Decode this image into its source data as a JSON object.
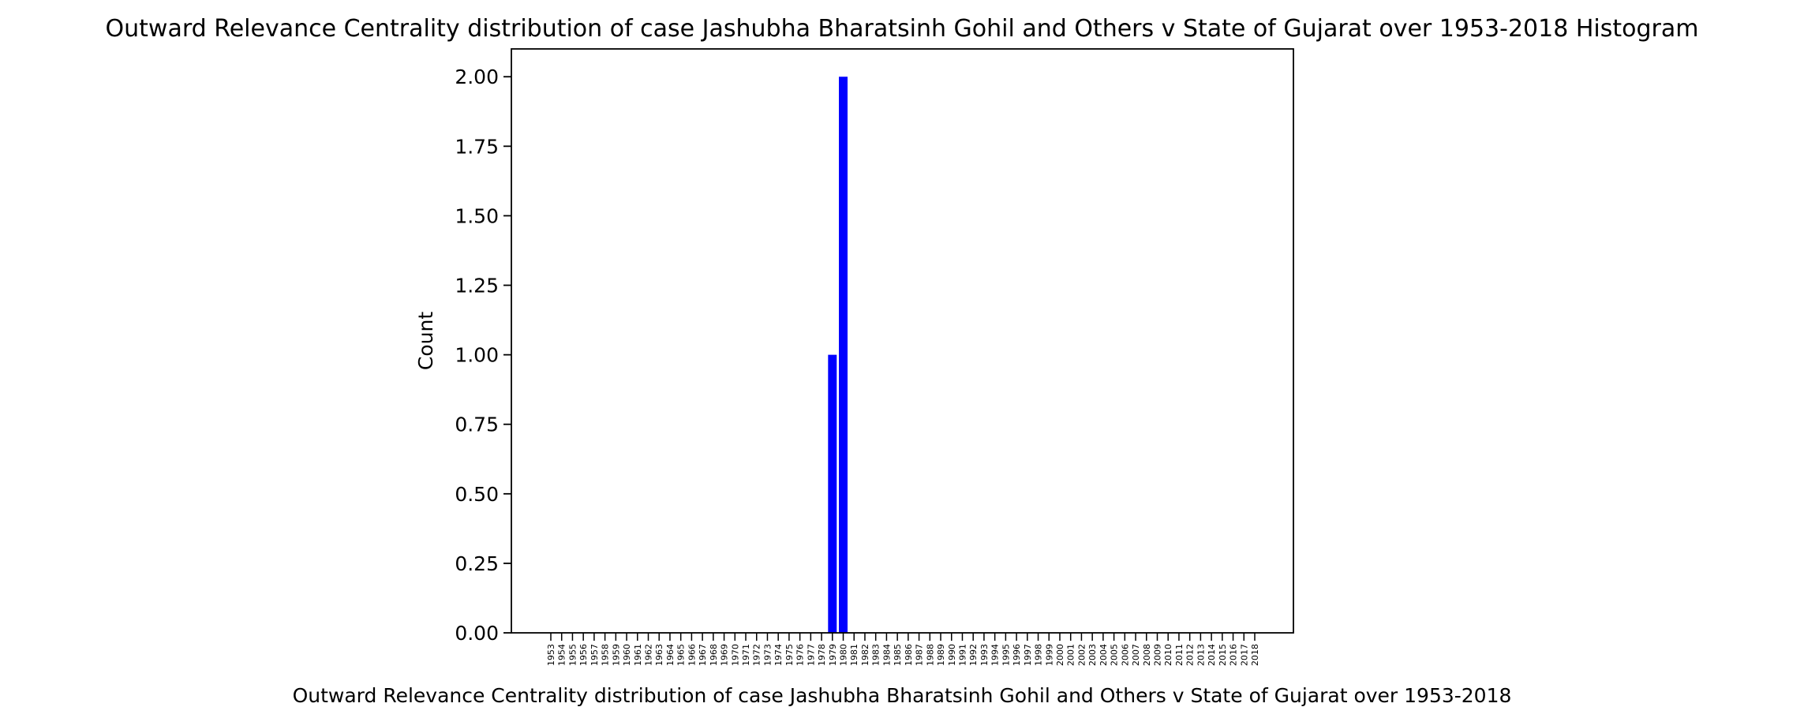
{
  "chart_data": {
    "type": "bar",
    "title": "Outward Relevance Centrality distribution of case Jashubha Bharatsinh Gohil and Others v State of Gujarat over 1953-2018 Histogram",
    "xlabel": "Outward Relevance Centrality distribution of case Jashubha Bharatsinh Gohil and Others v State of Gujarat over 1953-2018",
    "ylabel": "Count",
    "ylim": [
      0,
      2.1
    ],
    "yticks": [
      "0.00",
      "0.25",
      "0.50",
      "0.75",
      "1.00",
      "1.25",
      "1.50",
      "1.75",
      "2.00"
    ],
    "categories": [
      "1953",
      "1954",
      "1955",
      "1956",
      "1957",
      "1958",
      "1959",
      "1960",
      "1961",
      "1962",
      "1963",
      "1964",
      "1965",
      "1966",
      "1967",
      "1968",
      "1969",
      "1970",
      "1971",
      "1972",
      "1973",
      "1974",
      "1975",
      "1976",
      "1977",
      "1978",
      "1979",
      "1980",
      "1981",
      "1982",
      "1983",
      "1984",
      "1985",
      "1986",
      "1987",
      "1988",
      "1989",
      "1990",
      "1991",
      "1992",
      "1993",
      "1994",
      "1995",
      "1996",
      "1997",
      "1998",
      "1999",
      "2000",
      "2001",
      "2002",
      "2003",
      "2004",
      "2005",
      "2006",
      "2007",
      "2008",
      "2009",
      "2010",
      "2011",
      "2012",
      "2013",
      "2014",
      "2015",
      "2016",
      "2017",
      "2018"
    ],
    "values": [
      0,
      0,
      0,
      0,
      0,
      0,
      0,
      0,
      0,
      0,
      0,
      0,
      0,
      0,
      0,
      0,
      0,
      0,
      0,
      0,
      0,
      0,
      0,
      0,
      0,
      0,
      1,
      2,
      0,
      0,
      0,
      0,
      0,
      0,
      0,
      0,
      0,
      0,
      0,
      0,
      0,
      0,
      0,
      0,
      0,
      0,
      0,
      0,
      0,
      0,
      0,
      0,
      0,
      0,
      0,
      0,
      0,
      0,
      0,
      0,
      0,
      0,
      0,
      0,
      0,
      0
    ],
    "bar_color": "#0000ff",
    "grid": false,
    "legend": "none"
  }
}
